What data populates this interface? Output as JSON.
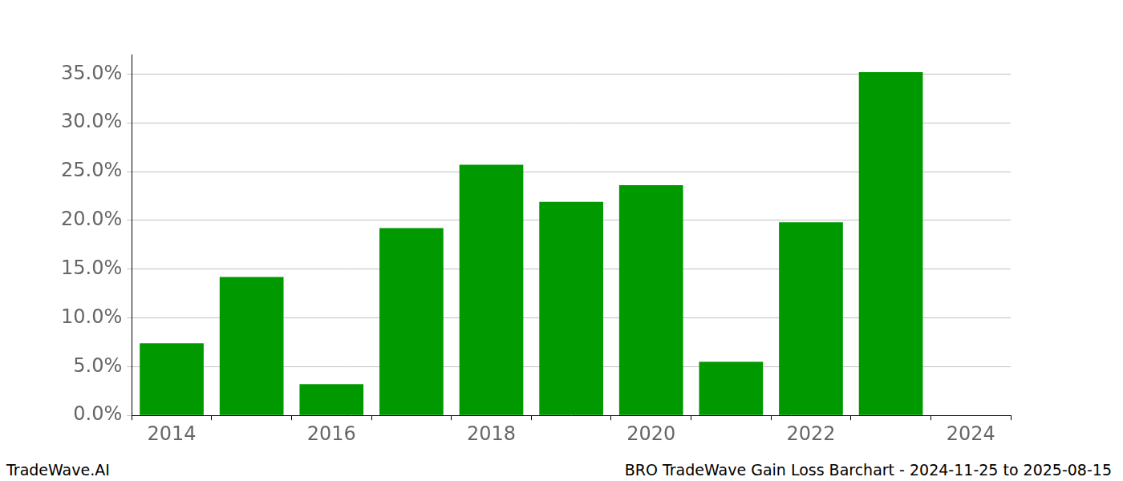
{
  "chart_data": {
    "type": "bar",
    "annotations": [
      "TradeWave.AI",
      "BRO TradeWave Gain Loss Barchart - 2024-11-25 to 2025-08-15"
    ],
    "categories": [
      "2014",
      null,
      "2016",
      null,
      "2018",
      null,
      "2020",
      null,
      "2022",
      null,
      "2024"
    ],
    "values": [
      7.4,
      14.2,
      3.2,
      19.2,
      25.7,
      21.9,
      23.6,
      5.5,
      19.8,
      35.2,
      null
    ],
    "color": "#009900",
    "ylim": [
      0,
      37
    ],
    "yticks": [
      {
        "value": 0,
        "label": "0.0%"
      },
      {
        "value": 5,
        "label": "5.0%"
      },
      {
        "value": 10,
        "label": "10.0%"
      },
      {
        "value": 15,
        "label": "15.0%"
      },
      {
        "value": 20,
        "label": "20.0%"
      },
      {
        "value": 25,
        "label": "25.0%"
      },
      {
        "value": 30,
        "label": "30.0%"
      },
      {
        "value": 35,
        "label": "35.0%"
      }
    ],
    "grid": true
  }
}
